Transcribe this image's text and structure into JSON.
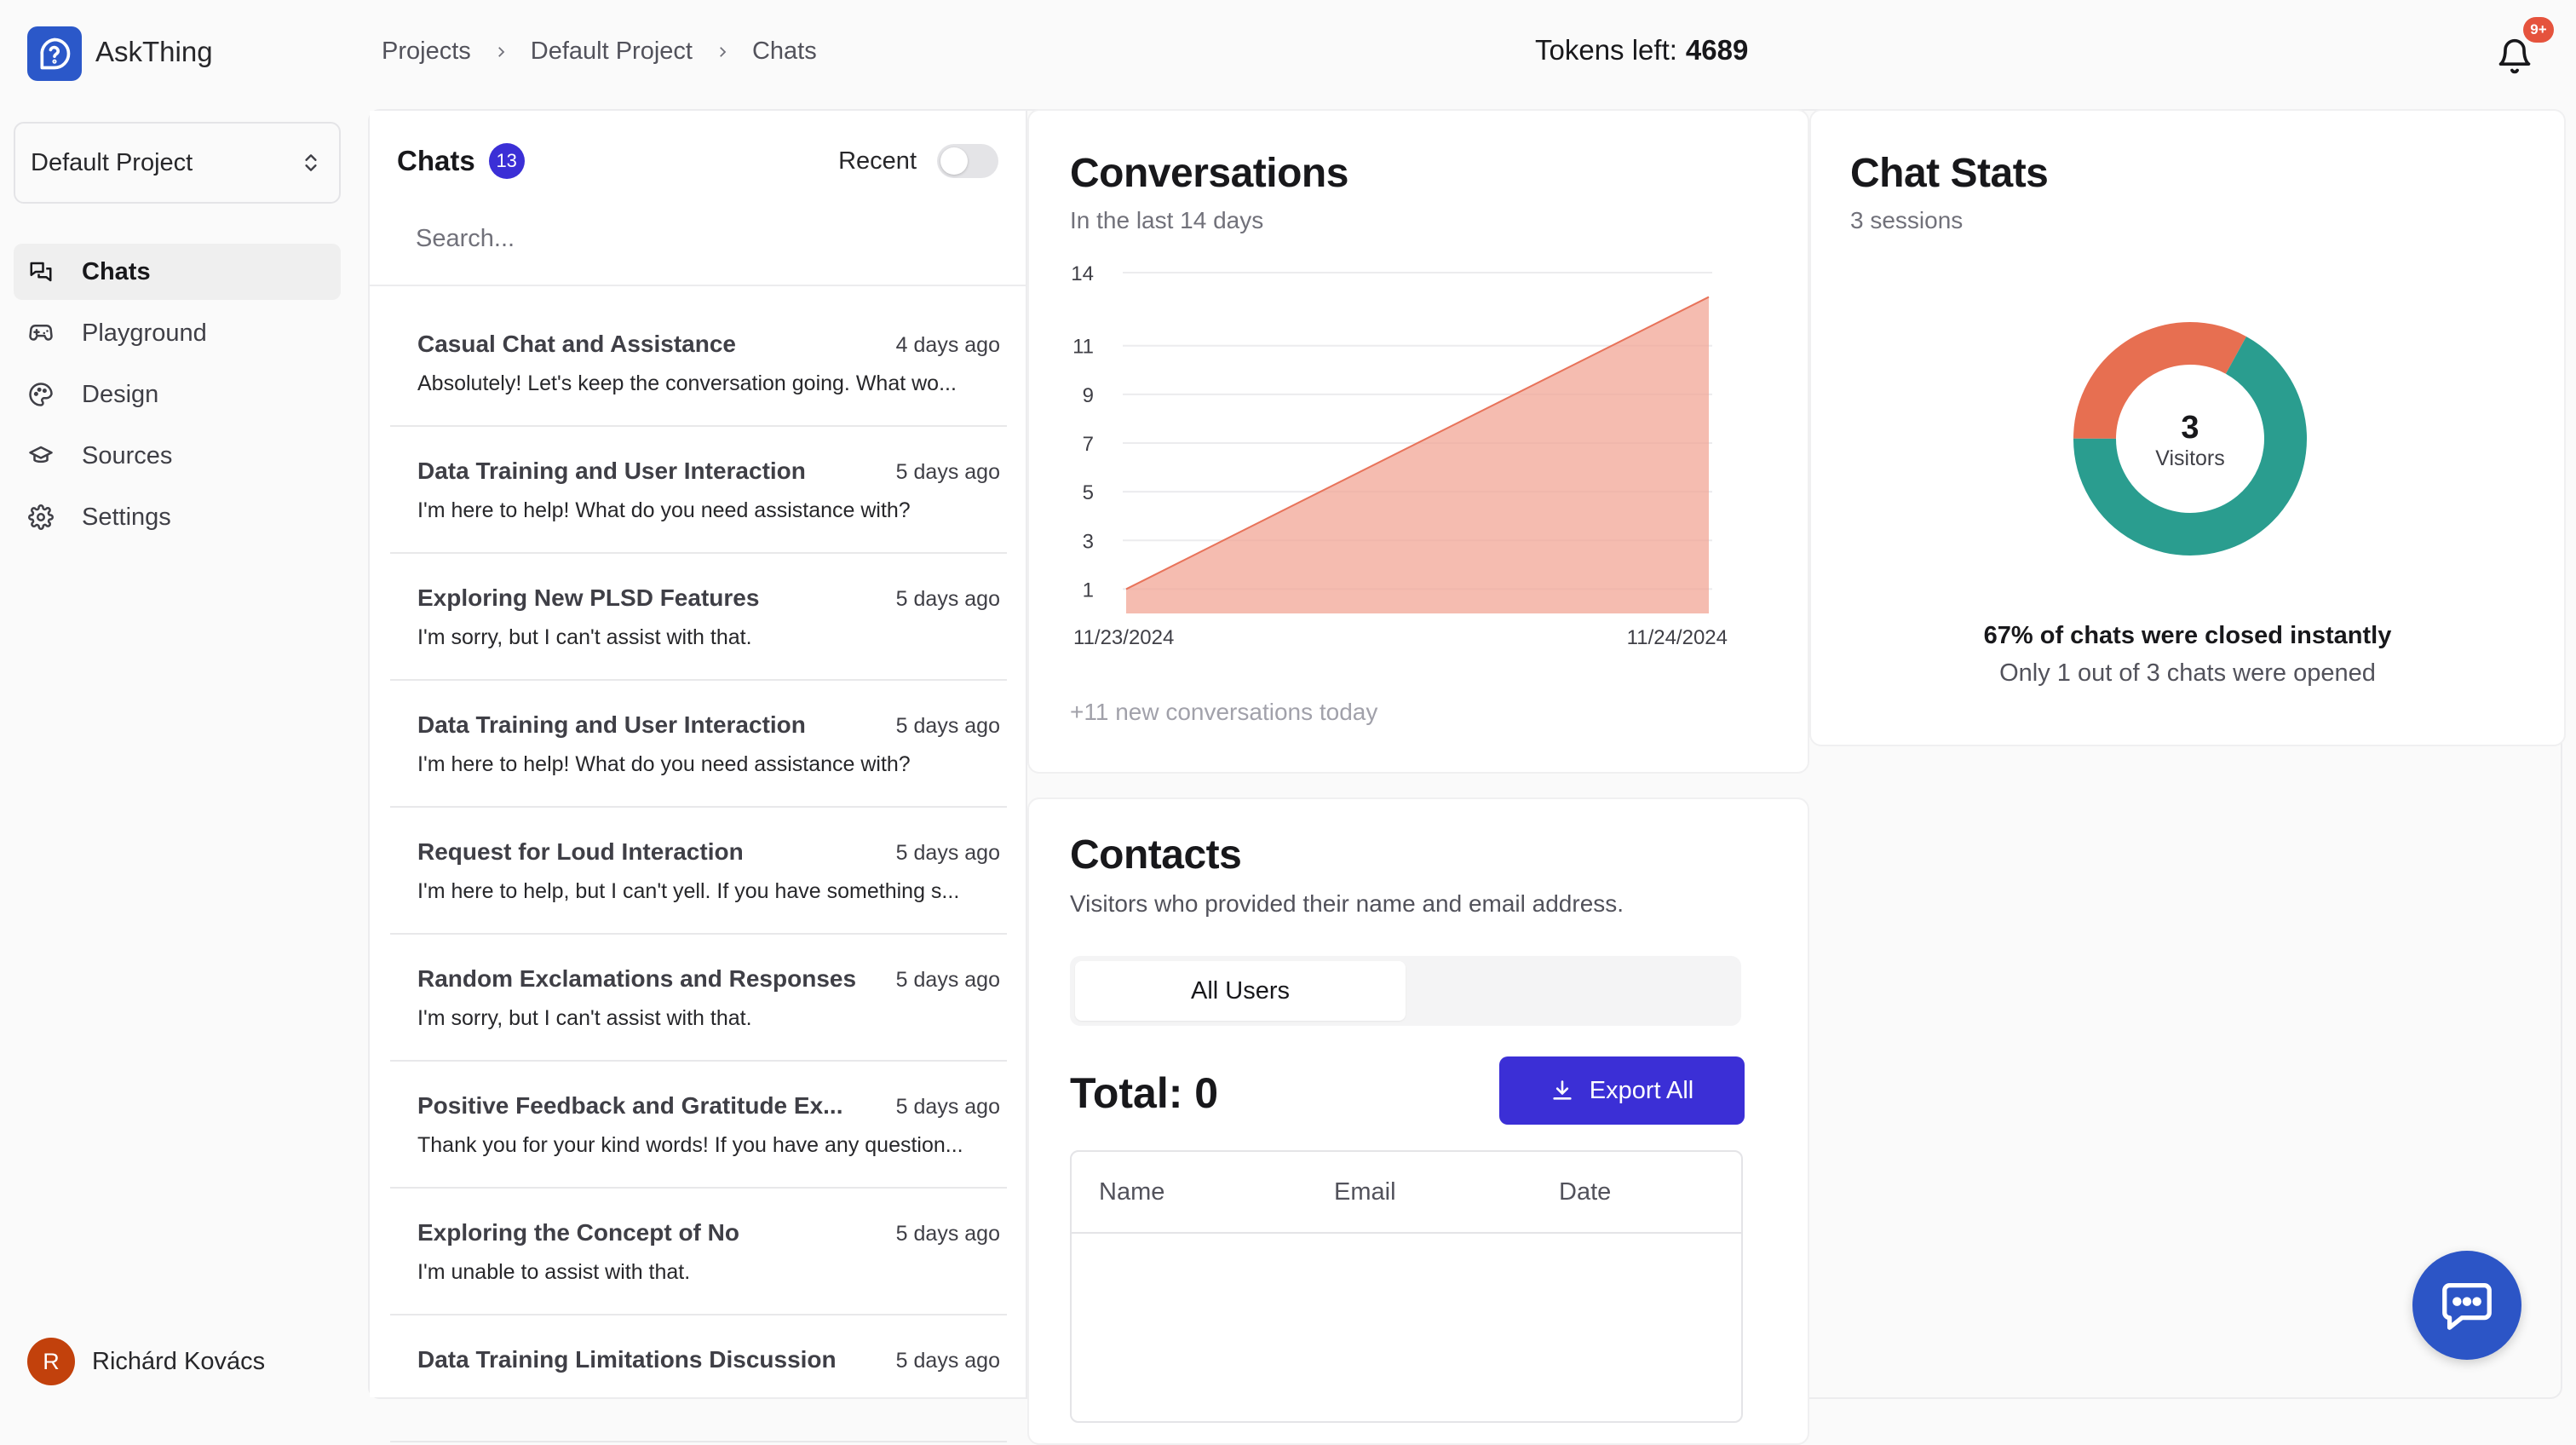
{
  "app": {
    "name": "AskThing",
    "logo_icon": "help-chat-icon"
  },
  "breadcrumb": {
    "items": [
      "Projects",
      "Default Project",
      "Chats"
    ]
  },
  "tokens": {
    "label": "Tokens left:",
    "value": "4689"
  },
  "notifications": {
    "badge": "9+",
    "icon": "bell-icon"
  },
  "sidebar": {
    "project": "Default Project",
    "items": [
      {
        "label": "Chats",
        "icon": "chat-icon",
        "active": true
      },
      {
        "label": "Playground",
        "icon": "gamepad-icon",
        "active": false
      },
      {
        "label": "Design",
        "icon": "palette-icon",
        "active": false
      },
      {
        "label": "Sources",
        "icon": "graduation-cap-icon",
        "active": false
      },
      {
        "label": "Settings",
        "icon": "gear-icon",
        "active": false
      }
    ],
    "user": {
      "initial": "R",
      "name": "Richárd Kovács"
    }
  },
  "chats": {
    "title": "Chats",
    "count": "13",
    "recent_label": "Recent",
    "search_placeholder": "Search...",
    "items": [
      {
        "title": "Casual Chat and Assistance",
        "time": "4 days ago",
        "preview": "Absolutely! Let's keep the conversation going. What wo..."
      },
      {
        "title": "Data Training and User Interaction",
        "time": "5 days ago",
        "preview": "I'm here to help! What do you need assistance with?"
      },
      {
        "title": "Exploring New PLSD Features",
        "time": "5 days ago",
        "preview": "I'm sorry, but I can't assist with that."
      },
      {
        "title": "Data Training and User Interaction",
        "time": "5 days ago",
        "preview": "I'm here to help! What do you need assistance with?"
      },
      {
        "title": "Request for Loud Interaction",
        "time": "5 days ago",
        "preview": "I'm here to help, but I can't yell. If you have something s..."
      },
      {
        "title": "Random Exclamations and Responses",
        "time": "5 days ago",
        "preview": "I'm sorry, but I can't assist with that."
      },
      {
        "title": "Positive Feedback and Gratitude Ex...",
        "time": "5 days ago",
        "preview": "Thank you for your kind words! If you have any question..."
      },
      {
        "title": "Exploring the Concept of No",
        "time": "5 days ago",
        "preview": "I'm unable to assist with that."
      },
      {
        "title": "Data Training Limitations Discussion",
        "time": "5 days ago",
        "preview": ""
      }
    ]
  },
  "conversations": {
    "title": "Conversations",
    "subtitle": "In the last 14 days",
    "footer": "+11 new conversations today"
  },
  "chat_data": {
    "type": "area",
    "x": [
      "11/23/2024",
      "11/24/2024"
    ],
    "values": [
      1,
      13
    ],
    "y_ticks": [
      1,
      3,
      5,
      7,
      9,
      11,
      14
    ],
    "ylim": [
      0,
      14
    ],
    "color": "#f1a595",
    "line_color": "#e8735a",
    "grid": true
  },
  "chat_stats": {
    "title": "Chat Stats",
    "subtitle": "3 sessions",
    "center_value": "3",
    "center_label": "Visitors",
    "line1": "67% of chats were closed instantly",
    "line2": "Only 1 out of 3 chats were opened",
    "donut": [
      {
        "name": "closed",
        "fraction": 0.67,
        "color": "#2a9d8f"
      },
      {
        "name": "opened",
        "fraction": 0.33,
        "color": "#e76f51"
      }
    ]
  },
  "contacts": {
    "title": "Contacts",
    "subtitle": "Visitors who provided their name and email address.",
    "tab": "All Users",
    "total": "Total: 0",
    "export_label": "Export All",
    "columns": [
      "Name",
      "Email",
      "Date"
    ]
  }
}
